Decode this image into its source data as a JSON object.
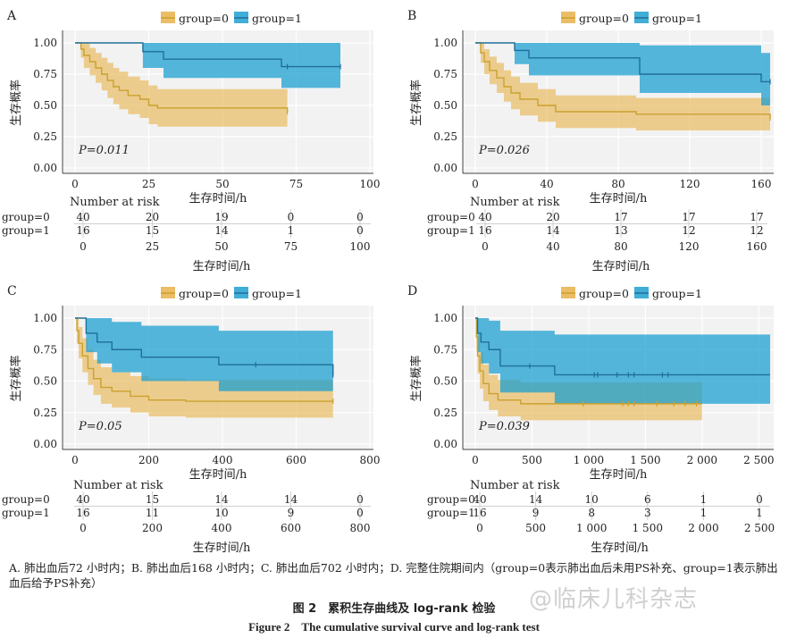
{
  "colors": {
    "group0": "#e8b24a",
    "group1": "#1ea0d0",
    "group0_line": "#c9a12e",
    "group1_line": "#1f6f9a"
  },
  "common": {
    "ylabel": "生存概率",
    "xlabel": "生存时间/h",
    "legend": [
      "group=0",
      "group=1"
    ],
    "yticks": [
      "0.00",
      "0.25",
      "0.50",
      "0.75",
      "1.00"
    ],
    "risk_title": "Number at risk",
    "risk_rows": [
      "group=0",
      "group=1"
    ]
  },
  "chart_data": [
    {
      "panel": "A",
      "type": "line",
      "title": "",
      "xlim": [
        0,
        100
      ],
      "ylim": [
        0,
        1
      ],
      "xticks": [
        0,
        25,
        50,
        75,
        100
      ],
      "pvalue": "P=0.011",
      "series": [
        {
          "name": "group=0",
          "x": [
            0,
            2,
            3,
            5,
            7,
            9,
            11,
            13,
            15,
            18,
            22,
            25,
            28,
            72
          ],
          "y": [
            1.0,
            0.95,
            0.9,
            0.85,
            0.8,
            0.75,
            0.7,
            0.65,
            0.62,
            0.58,
            0.55,
            0.5,
            0.48,
            0.45
          ],
          "lower": [
            1.0,
            0.88,
            0.8,
            0.74,
            0.68,
            0.62,
            0.56,
            0.51,
            0.47,
            0.43,
            0.4,
            0.35,
            0.33,
            0.3
          ],
          "upper": [
            1.0,
            1.0,
            1.0,
            0.96,
            0.92,
            0.88,
            0.84,
            0.8,
            0.77,
            0.73,
            0.7,
            0.66,
            0.63,
            0.6
          ],
          "censor_x": [
            72
          ]
        },
        {
          "name": "group=1",
          "x": [
            0,
            23,
            30,
            70,
            90
          ],
          "y": [
            1.0,
            0.93,
            0.87,
            0.81,
            0.81
          ],
          "lower": [
            1.0,
            0.8,
            0.72,
            0.64,
            0.64
          ],
          "upper": [
            1.0,
            1.0,
            1.0,
            1.0,
            1.0
          ],
          "censor_x": [
            72,
            90
          ]
        }
      ],
      "risk_x": [
        0,
        25,
        50,
        75,
        100
      ],
      "risk": [
        [
          40,
          20,
          19,
          0,
          0
        ],
        [
          16,
          15,
          14,
          1,
          0
        ]
      ]
    },
    {
      "panel": "B",
      "type": "line",
      "title": "",
      "xlim": [
        0,
        165
      ],
      "ylim": [
        0,
        1
      ],
      "xticks": [
        0,
        40,
        80,
        120,
        160
      ],
      "pvalue": "P=0.026",
      "series": [
        {
          "name": "group=0",
          "x": [
            0,
            3,
            5,
            8,
            12,
            16,
            20,
            25,
            35,
            45,
            90,
            165
          ],
          "y": [
            1.0,
            0.92,
            0.85,
            0.78,
            0.72,
            0.65,
            0.6,
            0.55,
            0.5,
            0.45,
            0.43,
            0.4
          ],
          "lower": [
            1.0,
            0.84,
            0.75,
            0.67,
            0.6,
            0.53,
            0.47,
            0.42,
            0.37,
            0.32,
            0.3,
            0.28
          ],
          "upper": [
            1.0,
            1.0,
            0.95,
            0.89,
            0.84,
            0.78,
            0.73,
            0.68,
            0.63,
            0.58,
            0.56,
            0.53
          ],
          "censor_x": [
            165
          ]
        },
        {
          "name": "group=1",
          "x": [
            0,
            22,
            30,
            92,
            160,
            165
          ],
          "y": [
            1.0,
            0.94,
            0.88,
            0.75,
            0.69,
            0.69
          ],
          "lower": [
            1.0,
            0.83,
            0.74,
            0.6,
            0.5,
            0.5
          ],
          "upper": [
            1.0,
            1.0,
            1.0,
            0.98,
            0.92,
            0.92
          ],
          "censor_x": [
            165
          ]
        }
      ],
      "risk_x": [
        0,
        40,
        80,
        120,
        160
      ],
      "risk": [
        [
          40,
          20,
          17,
          17,
          17
        ],
        [
          16,
          14,
          13,
          12,
          12
        ]
      ]
    },
    {
      "panel": "C",
      "type": "line",
      "title": "",
      "xlim": [
        0,
        800
      ],
      "ylim": [
        0,
        1
      ],
      "xticks": [
        0,
        200,
        400,
        600,
        800
      ],
      "pvalue": "P=0.05",
      "series": [
        {
          "name": "group=0",
          "x": [
            0,
            5,
            10,
            20,
            35,
            50,
            70,
            100,
            150,
            200,
            300,
            700
          ],
          "y": [
            1.0,
            0.9,
            0.8,
            0.7,
            0.6,
            0.52,
            0.45,
            0.42,
            0.38,
            0.35,
            0.34,
            0.34
          ],
          "lower": [
            1.0,
            0.8,
            0.68,
            0.57,
            0.47,
            0.39,
            0.32,
            0.29,
            0.25,
            0.22,
            0.21,
            0.21
          ],
          "upper": [
            1.0,
            1.0,
            0.93,
            0.84,
            0.75,
            0.67,
            0.61,
            0.57,
            0.54,
            0.52,
            0.51,
            0.51
          ],
          "censor_x": [
            700
          ]
        },
        {
          "name": "group=1",
          "x": [
            0,
            30,
            60,
            100,
            180,
            390,
            700
          ],
          "y": [
            1.0,
            0.88,
            0.81,
            0.75,
            0.69,
            0.63,
            0.55
          ],
          "lower": [
            1.0,
            0.73,
            0.64,
            0.57,
            0.5,
            0.42,
            0.32
          ],
          "upper": [
            1.0,
            1.0,
            1.0,
            0.97,
            0.94,
            0.9,
            0.9
          ],
          "censor_x": [
            490,
            700
          ]
        }
      ],
      "risk_x": [
        0,
        200,
        400,
        600,
        800
      ],
      "risk": [
        [
          40,
          15,
          14,
          14,
          0
        ],
        [
          16,
          11,
          10,
          9,
          0
        ]
      ]
    },
    {
      "panel": "D",
      "type": "line",
      "title": "",
      "xlim": [
        0,
        2600
      ],
      "ylim": [
        0,
        1
      ],
      "xticks": [
        0,
        500,
        1000,
        1500,
        2000,
        2500
      ],
      "xtick_labels": [
        "0",
        "500",
        "1 000",
        "1 500",
        "2 000",
        "2 500"
      ],
      "pvalue": "P=0.039",
      "series": [
        {
          "name": "group=0",
          "x": [
            0,
            10,
            20,
            40,
            70,
            120,
            200,
            400,
            2000
          ],
          "y": [
            1.0,
            0.85,
            0.7,
            0.58,
            0.48,
            0.4,
            0.35,
            0.32,
            0.32
          ],
          "lower": [
            1.0,
            0.74,
            0.56,
            0.44,
            0.34,
            0.27,
            0.22,
            0.19,
            0.19
          ],
          "upper": [
            1.0,
            0.97,
            0.85,
            0.73,
            0.63,
            0.55,
            0.51,
            0.49,
            0.49
          ],
          "censor_x": [
            950,
            1300,
            1350,
            1400,
            1600,
            1750,
            1850,
            1950
          ]
        },
        {
          "name": "group=1",
          "x": [
            0,
            20,
            50,
            120,
            220,
            700,
            2600
          ],
          "y": [
            1.0,
            0.88,
            0.81,
            0.75,
            0.62,
            0.55,
            0.55
          ],
          "lower": [
            1.0,
            0.73,
            0.64,
            0.56,
            0.41,
            0.32,
            0.32
          ],
          "upper": [
            1.0,
            1.0,
            1.0,
            0.98,
            0.9,
            0.87,
            0.87
          ],
          "censor_x": [
            480,
            1050,
            1080,
            1250,
            1350,
            1400,
            1650,
            1700
          ]
        }
      ],
      "risk_x": [
        0,
        500,
        1000,
        1500,
        2000,
        2500
      ],
      "risk": [
        [
          40,
          14,
          10,
          6,
          1,
          0
        ],
        [
          16,
          9,
          8,
          3,
          1,
          1
        ]
      ]
    }
  ],
  "caption": "A. 肺出血后72 小时内；B. 肺出血后168 小时内；C. 肺出血后702 小时内；D. 完整住院期间内（group=0表示肺出血后未用PS补充、group=1表示肺出血后给予PS补充）",
  "figure_title_cn": "图 2　累积生存曲线及 log-rank 检验",
  "figure_title_en": "Figure 2　The cumulative survival curve and log-rank test",
  "watermark": "@临床儿科杂志"
}
